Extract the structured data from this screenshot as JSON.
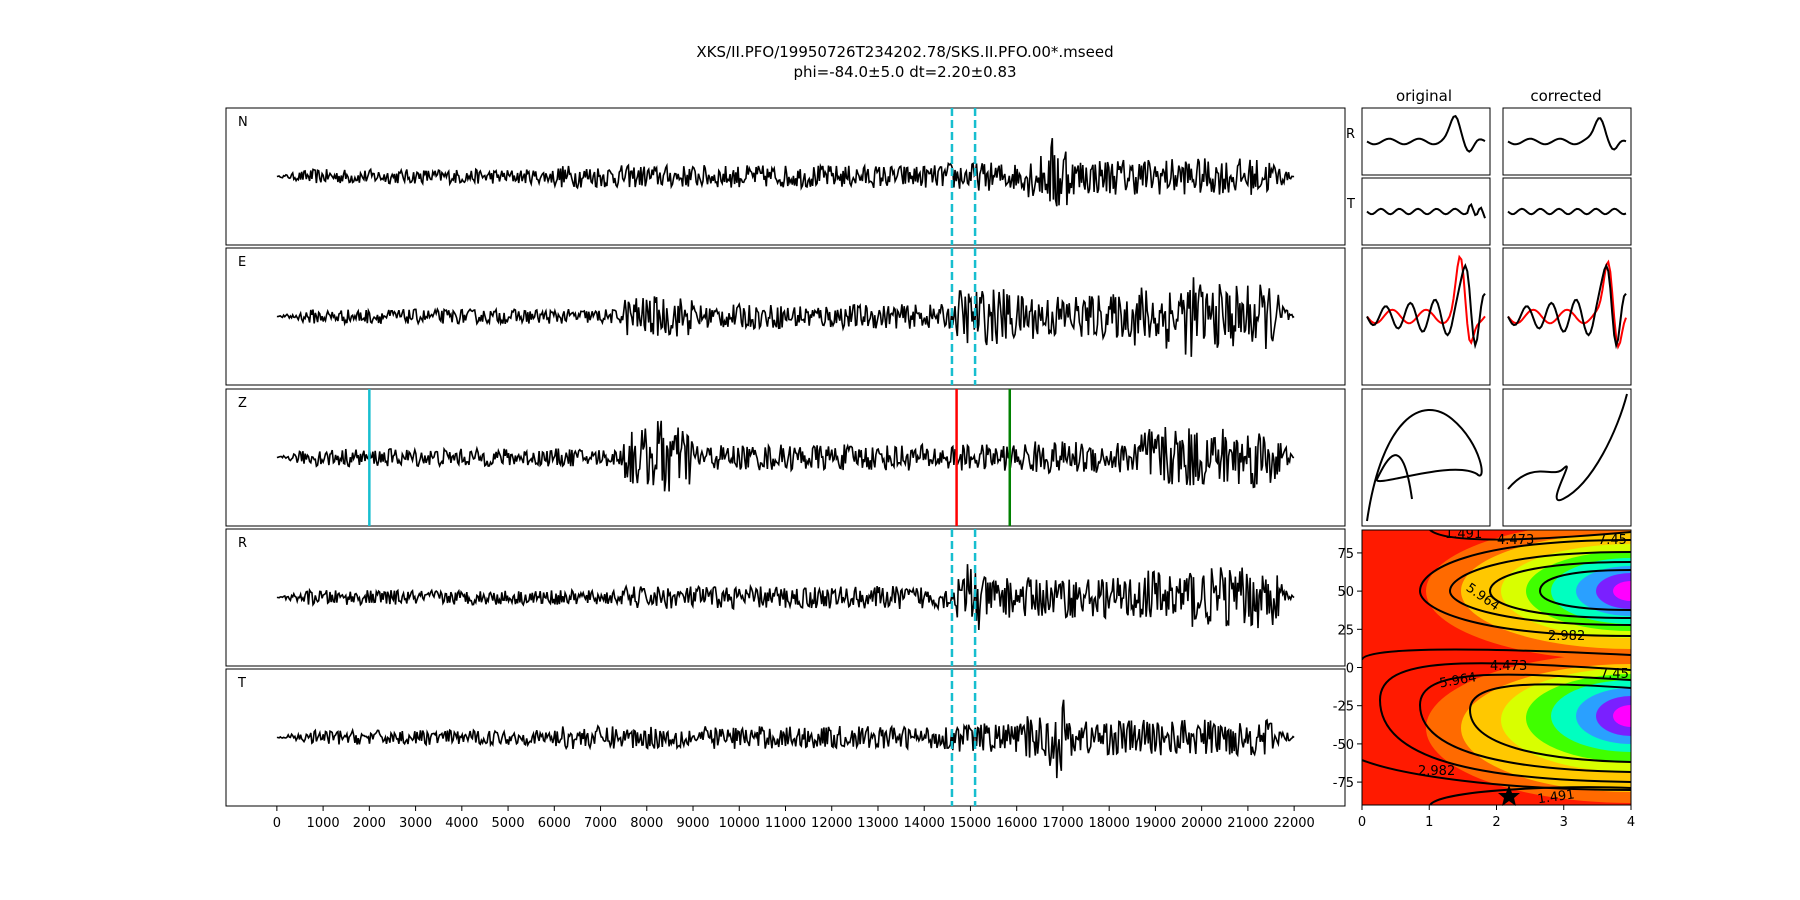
{
  "title": {
    "line1": "XKS/II.PFO/19950726T234202.78/SKS.II.PFO.00*.mseed",
    "line2": "phi=-84.0±5.0 dt=2.20±0.83"
  },
  "columns": {
    "original": "original",
    "corrected": "corrected"
  },
  "chart_data": [
    {
      "type": "line",
      "description_of_panels": "Five stacked seismogram traces sharing the x axis",
      "panels": [
        "N",
        "E",
        "Z",
        "R",
        "T"
      ],
      "xlim": [
        -1100,
        23100
      ],
      "xticks": [
        0,
        1000,
        2000,
        3000,
        4000,
        5000,
        6000,
        7000,
        8000,
        9000,
        10000,
        11000,
        12000,
        13000,
        14000,
        15000,
        16000,
        17000,
        18000,
        19000,
        20000,
        21000,
        22000
      ],
      "trace_x_range": [
        0,
        22000
      ],
      "window_markers": {
        "panels": [
          "N",
          "E",
          "R",
          "T"
        ],
        "x": [
          14600,
          15100
        ],
        "color": "#17becf",
        "style": "dashed"
      },
      "phase_markers": {
        "panel": "Z",
        "lines": [
          {
            "x": 2000,
            "color": "#17becf"
          },
          {
            "x": 14700,
            "color": "#ff0000"
          },
          {
            "x": 15850,
            "color": "#008000"
          }
        ]
      }
    },
    {
      "type": "line",
      "columns": [
        "original",
        "corrected"
      ],
      "row_labels": [
        "R",
        "T",
        "",
        ""
      ],
      "series_colors": {
        "primary": "#000000",
        "secondary": "#ff0000"
      }
    },
    {
      "type": "heatmap",
      "xlim": [
        0,
        4
      ],
      "ylim": [
        -90,
        90
      ],
      "xticks": [
        0,
        1,
        2,
        3,
        4
      ],
      "yticks": [
        -75,
        -50,
        -25,
        0,
        25,
        50,
        75
      ],
      "contour_labels": [
        "1.491",
        "2.982",
        "4.473",
        "5.964",
        "7.45"
      ],
      "best_fit": {
        "dt": 2.2,
        "phi": -84.0,
        "marker": "star"
      }
    }
  ]
}
